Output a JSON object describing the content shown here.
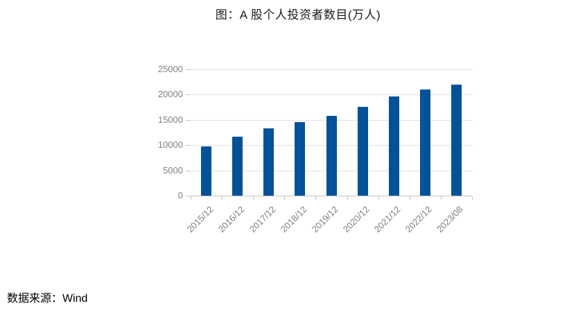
{
  "title": "图：A 股个人投资者数目(万人)",
  "source_note": "数据来源：Wind",
  "colors": {
    "bar": "#00529b",
    "axis_text": "#7f7f7f",
    "gridline": "#e2e2e2",
    "axis_line": "#c3c3c3",
    "title_text": "#1a1a1a"
  },
  "chart_data": {
    "type": "bar",
    "title": "图：A 股个人投资者数目(万人)",
    "categories": [
      "2015/12",
      "2016/12",
      "2017/12",
      "2018/12",
      "2019/12",
      "2020/12",
      "2021/12",
      "2022/12",
      "2023/08"
    ],
    "values": [
      9800,
      11650,
      13300,
      14500,
      15800,
      17650,
      19650,
      21050,
      21950
    ],
    "xlabel": "",
    "ylabel": "",
    "ylim": [
      0,
      25000
    ],
    "yticks": [
      0,
      5000,
      10000,
      15000,
      20000,
      25000
    ],
    "grid": "horizontal",
    "legend": "none",
    "bar_color": "#00529b",
    "x_label_rotation_deg": 45
  }
}
